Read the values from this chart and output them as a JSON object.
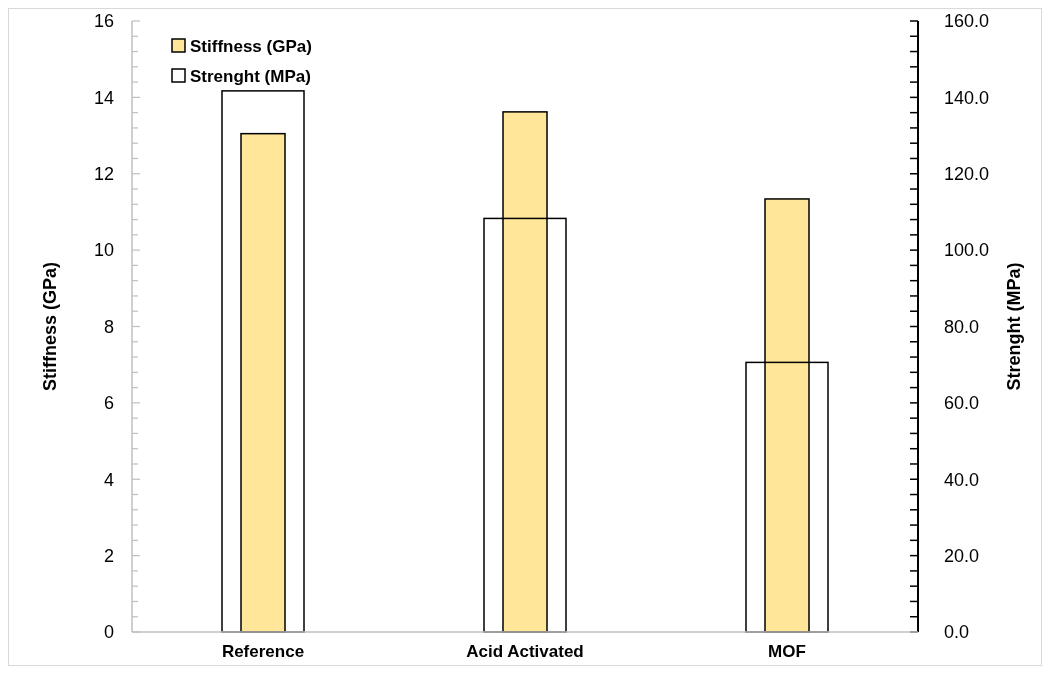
{
  "chart_data": {
    "type": "bar",
    "ylabel": "Stiffness (GPa)",
    "y2label": "Strenght (MPa)",
    "categories": [
      "Reference",
      "Acid Activated",
      "MOF"
    ],
    "series": [
      {
        "name": "Stiffness (GPa)",
        "color": "#ffe699",
        "values": [
          13.05,
          13.62,
          11.34
        ]
      },
      {
        "name": "Strenght (MPa)",
        "color": "#000000",
        "axis": "y2",
        "values": [
          141.7,
          108.3,
          70.6
        ]
      }
    ],
    "ylim": [
      0,
      16
    ],
    "yticks": [
      0,
      {
        "value": 0.4,
        "label": null
      },
      {
        "value": 0.8,
        "label": null
      },
      {
        "value": 1.2,
        "label": null
      },
      {
        "value": 1.6,
        "label": null
      },
      2,
      {
        "value": 2.4,
        "label": null
      },
      {
        "value": 2.8,
        "label": null
      },
      {
        "value": 3.2,
        "label": null
      },
      {
        "value": 3.6,
        "label": null
      },
      4,
      {
        "value": 4.4,
        "label": null
      },
      {
        "value": 4.8,
        "label": null
      },
      {
        "value": 5.2,
        "label": null
      },
      {
        "value": 5.6,
        "label": null
      },
      6,
      {
        "value": 6.4,
        "label": null
      },
      {
        "value": 6.8,
        "label": null
      },
      {
        "value": 7.2,
        "label": null
      },
      {
        "value": 7.6,
        "label": null
      },
      8,
      {
        "value": 8.4,
        "label": null
      },
      {
        "value": 8.8,
        "label": null
      },
      {
        "value": 9.2,
        "label": null
      },
      {
        "value": 9.6,
        "label": null
      },
      10,
      {
        "value": 10.4,
        "label": null
      },
      {
        "value": 10.8,
        "label": null
      },
      {
        "value": 11.2,
        "label": null
      },
      {
        "value": 11.6,
        "label": null
      },
      12,
      {
        "value": 12.4,
        "label": null
      },
      {
        "value": 12.8,
        "label": null
      },
      {
        "value": 13.2,
        "label": null
      },
      {
        "value": 13.6,
        "label": null
      },
      14,
      {
        "value": 14.4,
        "label": null
      },
      {
        "value": 14.8,
        "label": null
      },
      {
        "value": 15.2,
        "label": null
      },
      {
        "value": 15.6,
        "label": null
      },
      16
    ],
    "y2lim": [
      0,
      160
    ],
    "y2ticks": [
      {
        "value": 0,
        "label": "0.0"
      },
      {
        "value": 4,
        "label": null
      },
      {
        "value": 8,
        "label": null
      },
      {
        "value": 12,
        "label": null
      },
      {
        "value": 16,
        "label": null
      },
      {
        "value": 20,
        "label": "20.0"
      },
      {
        "value": 24,
        "label": null
      },
      {
        "value": 28,
        "label": null
      },
      {
        "value": 32,
        "label": null
      },
      {
        "value": 36,
        "label": null
      },
      {
        "value": 40,
        "label": "40.0"
      },
      {
        "value": 44,
        "label": null
      },
      {
        "value": 48,
        "label": null
      },
      {
        "value": 52,
        "label": null
      },
      {
        "value": 56,
        "label": null
      },
      {
        "value": 60,
        "label": "60.0"
      },
      {
        "value": 64,
        "label": null
      },
      {
        "value": 68,
        "label": null
      },
      {
        "value": 72,
        "label": null
      },
      {
        "value": 76,
        "label": null
      },
      {
        "value": 80,
        "label": "80.0"
      },
      {
        "value": 84,
        "label": null
      },
      {
        "value": 88,
        "label": null
      },
      {
        "value": 92,
        "label": null
      },
      {
        "value": 96,
        "label": null
      },
      {
        "value": 100,
        "label": "100.0"
      },
      {
        "value": 104,
        "label": null
      },
      {
        "value": 108,
        "label": null
      },
      {
        "value": 112,
        "label": null
      },
      {
        "value": 116,
        "label": null
      },
      {
        "value": 120,
        "label": "120.0"
      },
      {
        "value": 124,
        "label": null
      },
      {
        "value": 128,
        "label": null
      },
      {
        "value": 132,
        "label": null
      },
      {
        "value": 136,
        "label": null
      },
      {
        "value": 140,
        "label": "140.0"
      },
      {
        "value": 144,
        "label": null
      },
      {
        "value": 148,
        "label": null
      },
      {
        "value": 152,
        "label": null
      },
      {
        "value": 156,
        "label": null
      },
      {
        "value": 160,
        "label": "160.0"
      }
    ],
    "legend": "top left",
    "grid": false
  }
}
